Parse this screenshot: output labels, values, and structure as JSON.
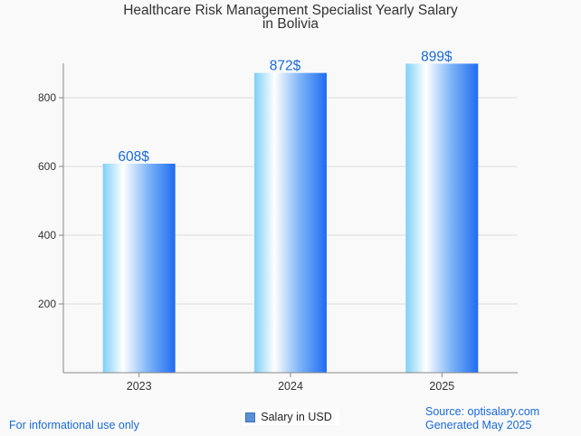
{
  "chart_data": {
    "type": "bar",
    "title_line1": "Healthcare Risk Management Specialist Yearly Salary",
    "title_line2": "in Bolivia",
    "categories": [
      "2023",
      "2024",
      "2025"
    ],
    "series": [
      {
        "name": "Salary in USD",
        "values": [
          608,
          872,
          899
        ]
      }
    ],
    "data_labels": [
      "608$",
      "872$",
      "899$"
    ],
    "ylim": [
      0,
      900
    ],
    "yticks": [
      200,
      400,
      600,
      800
    ],
    "grid": true,
    "legend_position": "bottom-center",
    "colors": {
      "bar_light": "#ffffff",
      "bar_mid": "#7fd0f7",
      "bar_dark": "#1f6cf2",
      "label": "#1a6ad8",
      "grid": "#dddddd",
      "axis": "#888888"
    }
  },
  "footer": {
    "disclaimer": "For informational use only",
    "source": "Source: optisalary.com",
    "generated": "Generated May 2025"
  }
}
